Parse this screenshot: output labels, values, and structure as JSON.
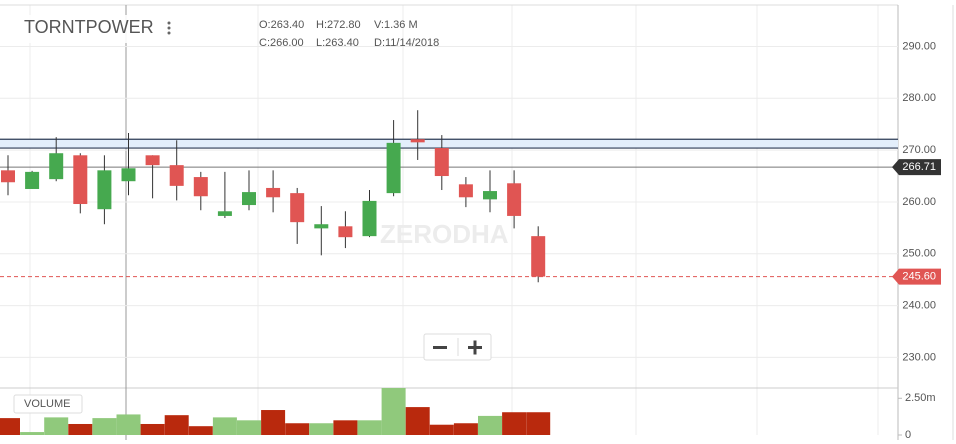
{
  "chart_data": [
    {
      "type": "candlestick",
      "title": "TORNTPOWER",
      "info": [
        "O:263.40",
        "H:272.80",
        "V:1.36 M",
        "C:266.00",
        "L:263.40",
        "D:11/14/2018"
      ],
      "open": [
        266.1,
        262.5,
        264.4,
        269.0,
        258.6,
        264.0,
        269.0,
        267.1,
        264.8,
        257.3,
        259.4,
        262.7,
        261.7,
        254.9,
        255.3,
        253.4,
        261.7,
        272.1,
        270.4,
        263.4,
        260.5,
        263.6,
        253.4
      ],
      "high": [
        269.0,
        266.0,
        272.5,
        269.4,
        269.0,
        273.3,
        269.0,
        271.9,
        265.8,
        265.8,
        266.1,
        266.1,
        262.7,
        259.2,
        258.2,
        262.3,
        275.8,
        277.7,
        272.9,
        264.8,
        266.1,
        266.1,
        255.3
      ],
      "low": [
        261.3,
        262.5,
        264.0,
        257.8,
        255.7,
        261.3,
        260.7,
        260.3,
        258.4,
        256.9,
        258.4,
        258.0,
        251.9,
        249.7,
        251.1,
        253.2,
        261.1,
        268.1,
        262.3,
        259.0,
        258.0,
        254.9,
        244.5
      ],
      "close": [
        263.8,
        265.8,
        269.4,
        259.6,
        266.1,
        266.5,
        267.1,
        263.1,
        261.1,
        258.2,
        261.9,
        260.9,
        256.1,
        255.7,
        253.2,
        260.2,
        271.4,
        271.5,
        265.0,
        260.9,
        262.1,
        257.3,
        245.6
      ],
      "up_color": "#46a94f",
      "down_color": "#e05553",
      "ylim": [
        224.1,
        298
      ],
      "yticks": [
        {
          "value": 230,
          "label": "230.00"
        },
        {
          "value": 240,
          "label": "240.00"
        },
        {
          "value": 250,
          "label": "250.00"
        },
        {
          "value": 260,
          "label": "260.00"
        },
        {
          "value": 270,
          "label": "270.00"
        },
        {
          "value": 280,
          "label": "280.00"
        },
        {
          "value": 290,
          "label": "290.00"
        }
      ],
      "grid": true,
      "band": [
        270.4,
        272.1
      ],
      "markers": [
        {
          "value": 266.71,
          "label": "266.71",
          "color": "#333333",
          "style": "solid"
        },
        {
          "value": 245.6,
          "label": "245.60",
          "color": "#e05553",
          "style": "dashed"
        }
      ]
    },
    {
      "type": "bar",
      "title": "VOLUME",
      "values": [
        1.15,
        0.2,
        1.2,
        0.75,
        1.15,
        1.4,
        0.75,
        1.35,
        0.6,
        1.2,
        1.0,
        1.7,
        0.8,
        0.8,
        1.0,
        1.0,
        3.2,
        1.9,
        0.7,
        0.8,
        1.3,
        1.55,
        1.55
      ],
      "up_color": "#90c97c",
      "down_color": "#b9290d",
      "ylim": [
        0,
        3.2
      ],
      "yticks": [
        {
          "value": 0,
          "label": "0"
        },
        {
          "value": 2.5,
          "label": "2.50m"
        }
      ]
    }
  ],
  "watermark": "ZERODHA"
}
